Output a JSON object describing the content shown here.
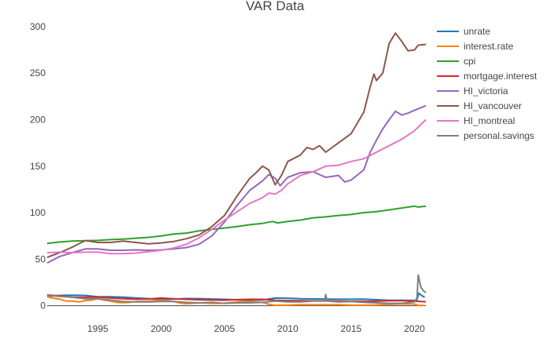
{
  "chart_data": {
    "type": "line",
    "title": "VAR Data",
    "xlabel": "",
    "ylabel": "",
    "xlim": [
      1991.0,
      2020.9
    ],
    "ylim": [
      -13,
      305
    ],
    "x_ticks": [
      1995,
      2000,
      2005,
      2010,
      2015,
      2020
    ],
    "y_ticks": [
      0,
      50,
      100,
      150,
      200,
      250,
      300
    ],
    "grid": false,
    "legend_position": "right",
    "series": [
      {
        "name": "unrate",
        "color": "#1f77b4",
        "points": [
          [
            1991.0,
            10
          ],
          [
            1992.0,
            11
          ],
          [
            1993.0,
            11.3
          ],
          [
            1994.0,
            11
          ],
          [
            1995.0,
            9.6
          ],
          [
            1996.0,
            9.6
          ],
          [
            1997.0,
            9.2
          ],
          [
            1998.0,
            8.3
          ],
          [
            1999.0,
            7.6
          ],
          [
            2000.0,
            6.8
          ],
          [
            2001.0,
            7.2
          ],
          [
            2002.0,
            7.7
          ],
          [
            2003.0,
            7.6
          ],
          [
            2004.0,
            7.2
          ],
          [
            2005.0,
            6.8
          ],
          [
            2006.0,
            6.3
          ],
          [
            2007.0,
            6
          ],
          [
            2008.0,
            6.1
          ],
          [
            2009.0,
            8.2
          ],
          [
            2010.0,
            8
          ],
          [
            2011.0,
            7.5
          ],
          [
            2012.0,
            7.3
          ],
          [
            2013.0,
            7.1
          ],
          [
            2014.0,
            6.9
          ],
          [
            2015.0,
            6.9
          ],
          [
            2016.0,
            7
          ],
          [
            2017.0,
            6.4
          ],
          [
            2018.0,
            5.8
          ],
          [
            2019.0,
            5.7
          ],
          [
            2020.0,
            5.6
          ],
          [
            2020.2,
            6.5
          ],
          [
            2020.35,
            13.5
          ],
          [
            2020.55,
            11
          ],
          [
            2020.8,
            9
          ]
        ]
      },
      {
        "name": "interest.rate",
        "color": "#ff7f0e",
        "points": [
          [
            1991.0,
            9.5
          ],
          [
            1991.5,
            8
          ],
          [
            1992.0,
            7
          ],
          [
            1992.5,
            5
          ],
          [
            1993.0,
            5
          ],
          [
            1993.5,
            4
          ],
          [
            1994.0,
            5.5
          ],
          [
            1994.5,
            6
          ],
          [
            1995.0,
            7.5
          ],
          [
            1995.5,
            6
          ],
          [
            1996.0,
            5
          ],
          [
            1996.5,
            3.5
          ],
          [
            1997.0,
            3.2
          ],
          [
            1997.5,
            3.5
          ],
          [
            1998.0,
            4.5
          ],
          [
            1999.0,
            4.8
          ],
          [
            2000.0,
            5.8
          ],
          [
            2001.0,
            4.5
          ],
          [
            2001.5,
            2.8
          ],
          [
            2002.0,
            2.1
          ],
          [
            2003.0,
            3
          ],
          [
            2004.0,
            2.4
          ],
          [
            2005.0,
            2.6
          ],
          [
            2006.0,
            4.2
          ],
          [
            2007.0,
            4.4
          ],
          [
            2008.0,
            3.5
          ],
          [
            2008.5,
            1.5
          ],
          [
            2009.0,
            0.4
          ],
          [
            2010.0,
            0.6
          ],
          [
            2011.0,
            1
          ],
          [
            2012.0,
            1
          ],
          [
            2013.0,
            1
          ],
          [
            2014.0,
            1
          ],
          [
            2015.0,
            0.6
          ],
          [
            2016.0,
            0.5
          ],
          [
            2017.0,
            0.7
          ],
          [
            2018.0,
            1.4
          ],
          [
            2019.0,
            1.8
          ],
          [
            2020.0,
            1.8
          ],
          [
            2020.3,
            0.3
          ],
          [
            2020.8,
            0.25
          ]
        ]
      },
      {
        "name": "cpi",
        "color": "#2ca02c",
        "points": [
          [
            1991.0,
            67
          ],
          [
            1992.0,
            68.5
          ],
          [
            1993.0,
            69.5
          ],
          [
            1994.0,
            69.8
          ],
          [
            1995.0,
            70.2
          ],
          [
            1996.0,
            71
          ],
          [
            1997.0,
            71.5
          ],
          [
            1998.0,
            72.5
          ],
          [
            1999.0,
            73.5
          ],
          [
            2000.0,
            75
          ],
          [
            2001.0,
            77
          ],
          [
            2002.0,
            78
          ],
          [
            2003.0,
            80.5
          ],
          [
            2004.0,
            82
          ],
          [
            2005.0,
            83.5
          ],
          [
            2006.0,
            85
          ],
          [
            2007.0,
            87
          ],
          [
            2008.0,
            88.5
          ],
          [
            2008.8,
            90.5
          ],
          [
            2009.2,
            89
          ],
          [
            2010.0,
            90.5
          ],
          [
            2011.0,
            92
          ],
          [
            2012.0,
            94.5
          ],
          [
            2013.0,
            95.5
          ],
          [
            2014.0,
            97
          ],
          [
            2015.0,
            98
          ],
          [
            2016.0,
            100
          ],
          [
            2017.0,
            101
          ],
          [
            2018.0,
            103
          ],
          [
            2019.0,
            105
          ],
          [
            2020.0,
            107
          ],
          [
            2020.3,
            106
          ],
          [
            2020.9,
            107
          ]
        ]
      },
      {
        "name": "mortgage.interest",
        "color": "#d62728",
        "points": [
          [
            1991.0,
            11.5
          ],
          [
            1992.0,
            10.5
          ],
          [
            1993.0,
            9
          ],
          [
            1994.0,
            9
          ],
          [
            1995.0,
            9.3
          ],
          [
            1996.0,
            8.2
          ],
          [
            1997.0,
            7.5
          ],
          [
            1998.0,
            7
          ],
          [
            1999.0,
            7.2
          ],
          [
            2000.0,
            8.2
          ],
          [
            2001.0,
            7.5
          ],
          [
            2002.0,
            6.8
          ],
          [
            2003.0,
            6.3
          ],
          [
            2004.0,
            6.1
          ],
          [
            2005.0,
            5.9
          ],
          [
            2006.0,
            6.5
          ],
          [
            2007.0,
            6.8
          ],
          [
            2008.0,
            6.8
          ],
          [
            2009.0,
            5.8
          ],
          [
            2010.0,
            5.5
          ],
          [
            2011.0,
            5.3
          ],
          [
            2012.0,
            5.2
          ],
          [
            2013.0,
            5.1
          ],
          [
            2014.0,
            4.9
          ],
          [
            2015.0,
            4.7
          ],
          [
            2016.0,
            4.6
          ],
          [
            2017.0,
            4.8
          ],
          [
            2018.0,
            5.3
          ],
          [
            2019.0,
            5.3
          ],
          [
            2020.0,
            4.9
          ],
          [
            2020.9,
            4.2
          ]
        ]
      },
      {
        "name": "HI_victoria",
        "color": "#9467bd",
        "points": [
          [
            1991.0,
            46
          ],
          [
            1992.0,
            53
          ],
          [
            1993.0,
            57
          ],
          [
            1994.0,
            61
          ],
          [
            1995.0,
            61
          ],
          [
            1996.0,
            59.5
          ],
          [
            1997.0,
            59.5
          ],
          [
            1998.0,
            60
          ],
          [
            1999.0,
            59.5
          ],
          [
            2000.0,
            60
          ],
          [
            2001.0,
            61
          ],
          [
            2002.0,
            62.5
          ],
          [
            2003.0,
            66
          ],
          [
            2004.0,
            75
          ],
          [
            2005.0,
            90
          ],
          [
            2006.0,
            108
          ],
          [
            2007.0,
            124
          ],
          [
            2008.0,
            134
          ],
          [
            2008.5,
            141
          ],
          [
            2009.0,
            137
          ],
          [
            2009.4,
            129
          ],
          [
            2010.0,
            138
          ],
          [
            2011.0,
            143
          ],
          [
            2012.0,
            144
          ],
          [
            2013.0,
            138
          ],
          [
            2014.0,
            140
          ],
          [
            2014.5,
            133
          ],
          [
            2015.0,
            135
          ],
          [
            2016.0,
            146
          ],
          [
            2016.5,
            165
          ],
          [
            2017.0,
            178
          ],
          [
            2017.5,
            190
          ],
          [
            2018.0,
            200
          ],
          [
            2018.5,
            209
          ],
          [
            2019.0,
            205
          ],
          [
            2019.5,
            207
          ],
          [
            2020.0,
            210
          ],
          [
            2020.9,
            215
          ]
        ]
      },
      {
        "name": "HI_vancouver",
        "color": "#8c564b",
        "points": [
          [
            1991.0,
            52
          ],
          [
            1992.0,
            57
          ],
          [
            1993.0,
            63
          ],
          [
            1994.0,
            70
          ],
          [
            1995.0,
            68
          ],
          [
            1996.0,
            68
          ],
          [
            1997.0,
            69.5
          ],
          [
            1998.0,
            68
          ],
          [
            1999.0,
            66.5
          ],
          [
            2000.0,
            67.5
          ],
          [
            2001.0,
            69
          ],
          [
            2002.0,
            72
          ],
          [
            2003.0,
            76
          ],
          [
            2004.0,
            85
          ],
          [
            2005.0,
            97
          ],
          [
            2006.0,
            118
          ],
          [
            2007.0,
            137
          ],
          [
            2007.5,
            143
          ],
          [
            2008.0,
            150
          ],
          [
            2008.5,
            146
          ],
          [
            2009.0,
            130
          ],
          [
            2009.5,
            140
          ],
          [
            2010.0,
            155
          ],
          [
            2011.0,
            162
          ],
          [
            2011.5,
            170
          ],
          [
            2012.0,
            168
          ],
          [
            2012.5,
            172
          ],
          [
            2013.0,
            165
          ],
          [
            2014.0,
            175
          ],
          [
            2015.0,
            185
          ],
          [
            2016.0,
            208
          ],
          [
            2016.5,
            235
          ],
          [
            2016.8,
            249
          ],
          [
            2017.0,
            242
          ],
          [
            2017.5,
            250
          ],
          [
            2018.0,
            282
          ],
          [
            2018.5,
            293
          ],
          [
            2019.0,
            284
          ],
          [
            2019.5,
            274
          ],
          [
            2020.0,
            275
          ],
          [
            2020.3,
            280
          ],
          [
            2020.9,
            281
          ]
        ]
      },
      {
        "name": "HI_montreal",
        "color": "#e377c2",
        "points": [
          [
            1991.0,
            57
          ],
          [
            1992.0,
            57.5
          ],
          [
            1993.0,
            57
          ],
          [
            1994.0,
            57.5
          ],
          [
            1995.0,
            57.5
          ],
          [
            1996.0,
            56
          ],
          [
            1997.0,
            56
          ],
          [
            1998.0,
            56.5
          ],
          [
            1999.0,
            58
          ],
          [
            2000.0,
            59.5
          ],
          [
            2001.0,
            62
          ],
          [
            2002.0,
            66
          ],
          [
            2003.0,
            73
          ],
          [
            2004.0,
            82
          ],
          [
            2005.0,
            92
          ],
          [
            2006.0,
            101
          ],
          [
            2007.0,
            110
          ],
          [
            2008.0,
            116
          ],
          [
            2008.5,
            121
          ],
          [
            2009.0,
            120
          ],
          [
            2009.5,
            124
          ],
          [
            2010.0,
            131
          ],
          [
            2011.0,
            140
          ],
          [
            2012.0,
            144
          ],
          [
            2013.0,
            150
          ],
          [
            2014.0,
            151
          ],
          [
            2015.0,
            155
          ],
          [
            2016.0,
            158
          ],
          [
            2017.0,
            165
          ],
          [
            2018.0,
            172
          ],
          [
            2019.0,
            179
          ],
          [
            2020.0,
            188
          ],
          [
            2020.9,
            200
          ]
        ]
      },
      {
        "name": "personal.savings",
        "color": "#7f7f7f",
        "points": [
          [
            1991.0,
            11
          ],
          [
            1992.0,
            10
          ],
          [
            1993.0,
            9
          ],
          [
            1994.0,
            7.5
          ],
          [
            1995.0,
            7.5
          ],
          [
            1996.0,
            6
          ],
          [
            1997.0,
            4.5
          ],
          [
            1998.0,
            4
          ],
          [
            1999.0,
            4
          ],
          [
            2000.0,
            4.5
          ],
          [
            2001.0,
            4.5
          ],
          [
            2002.0,
            3.5
          ],
          [
            2003.0,
            3
          ],
          [
            2004.0,
            3.5
          ],
          [
            2005.0,
            2.5
          ],
          [
            2006.0,
            3
          ],
          [
            2007.0,
            3
          ],
          [
            2008.0,
            3.5
          ],
          [
            2009.0,
            5
          ],
          [
            2010.0,
            4
          ],
          [
            2011.0,
            4
          ],
          [
            2012.0,
            5
          ],
          [
            2012.9,
            5
          ],
          [
            2013.0,
            12
          ],
          [
            2013.1,
            5
          ],
          [
            2014.0,
            4
          ],
          [
            2015.0,
            4.5
          ],
          [
            2016.0,
            3.5
          ],
          [
            2017.0,
            3
          ],
          [
            2018.0,
            2.5
          ],
          [
            2019.0,
            2.5
          ],
          [
            2020.0,
            4
          ],
          [
            2020.2,
            8
          ],
          [
            2020.3,
            33
          ],
          [
            2020.5,
            20
          ],
          [
            2020.7,
            16
          ],
          [
            2020.9,
            14
          ]
        ]
      }
    ]
  }
}
